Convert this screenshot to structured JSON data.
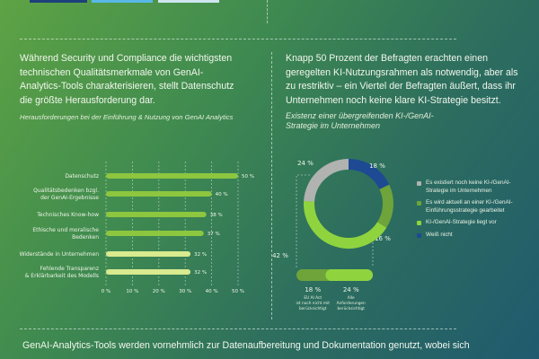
{
  "top_boxes": {
    "colors": [
      "#1d3f7a",
      "#59b8e6",
      "#cfe6ef"
    ]
  },
  "left": {
    "paragraph": "Während Security und Compliance die wichtigsten technischen Qualitätsmerkmale von GenAI-Analytics-Tools charakterisieren, stellt Datenschutz die größte Herausforderung dar.",
    "subtitle": "Herausforderungen bei der Einführung & Nutzung von GenAI Analytics"
  },
  "right": {
    "paragraph": "Knapp 50 Prozent der Befragten erachten einen geregelten KI-Nutzungsrahmen als notwendig, aber als zu restriktiv – ein Viertel der Befragten äußert, dass ihr Unternehmen noch keine klare KI-Strategie besitzt.",
    "subtitle": "Existenz einer übergreifenden KI-/GenAI-Strategie im Unternehmen"
  },
  "bottom": {
    "text": "GenAI-Analytics-Tools werden vornehmlich zur Datenaufbereitung und Dokumentation genutzt, wobei sich"
  },
  "chart_data": [
    {
      "type": "bar",
      "orientation": "horizontal",
      "categories": [
        "Datenschutz",
        "Qualitätsbedenken bzgl. der GenAI-Ergebnisse",
        "Technisches Know-how",
        "Ethische und moralische Bedenken",
        "Widerstände in Unternehmen",
        "Fehlende Transparenz & Erklärbarkeit des Modells"
      ],
      "values": [
        50,
        40,
        38,
        37,
        32,
        32
      ],
      "value_labels": [
        "50 %",
        "40 %",
        "38 %",
        "37 %",
        "32 %",
        "32 %"
      ],
      "colors": [
        "#8dc63f",
        "#8dc63f",
        "#8dc63f",
        "#8dc63f",
        "#d9ea8f",
        "#d9ea8f"
      ],
      "xlim": [
        0,
        50
      ],
      "ticks": [
        "0 %",
        "10 %",
        "20 %",
        "30 %",
        "40 %",
        "50 %"
      ],
      "tick_values": [
        0,
        10,
        20,
        30,
        40,
        50
      ],
      "grid": true
    },
    {
      "type": "pie",
      "donut": true,
      "slices": [
        {
          "label": "Weiß nicht",
          "value": 18,
          "value_label": "18 %",
          "color": "#1d4a93"
        },
        {
          "label": "Es wird aktuell an einer KI-/GenAI-Einführungsstrategie gearbeitet",
          "value": 16,
          "value_label": "16 %",
          "color": "#6ea43a"
        },
        {
          "label": "KI-/GenAI-Strategie liegt vor",
          "value": 42,
          "value_label": "42 %",
          "color": "#8fd43f"
        },
        {
          "label": "Es existiert noch keine KI-/GenAI-Strategie im Unternehmen",
          "value": 24,
          "value_label": "24 %",
          "color": "#b0b3b0"
        }
      ],
      "legend": {
        "position": "right",
        "order": [
          "Es existiert noch keine KI-/GenAI-Strategie im Unternehmen",
          "Es wird aktuell an einer KI-/GenAI-Einführungsstrategie gearbeitet",
          "KI-/GenAI-Strategie liegt vor",
          "Weiß nicht"
        ],
        "colors": [
          "#b0b3b0",
          "#6ea43a",
          "#8fd43f",
          "#1d4a93"
        ]
      },
      "breakdown": {
        "of": "KI-/GenAI-Strategie liegt vor",
        "parts": [
          {
            "label": "EU AI Act ist noch nicht mit berücksichtigt",
            "value": 18,
            "value_label": "18 %",
            "color": "#6ea43a"
          },
          {
            "label": "Alle Anforderungen berücksichtigt",
            "value": 24,
            "value_label": "24 %",
            "color": "#8fd43f"
          }
        ]
      }
    }
  ]
}
